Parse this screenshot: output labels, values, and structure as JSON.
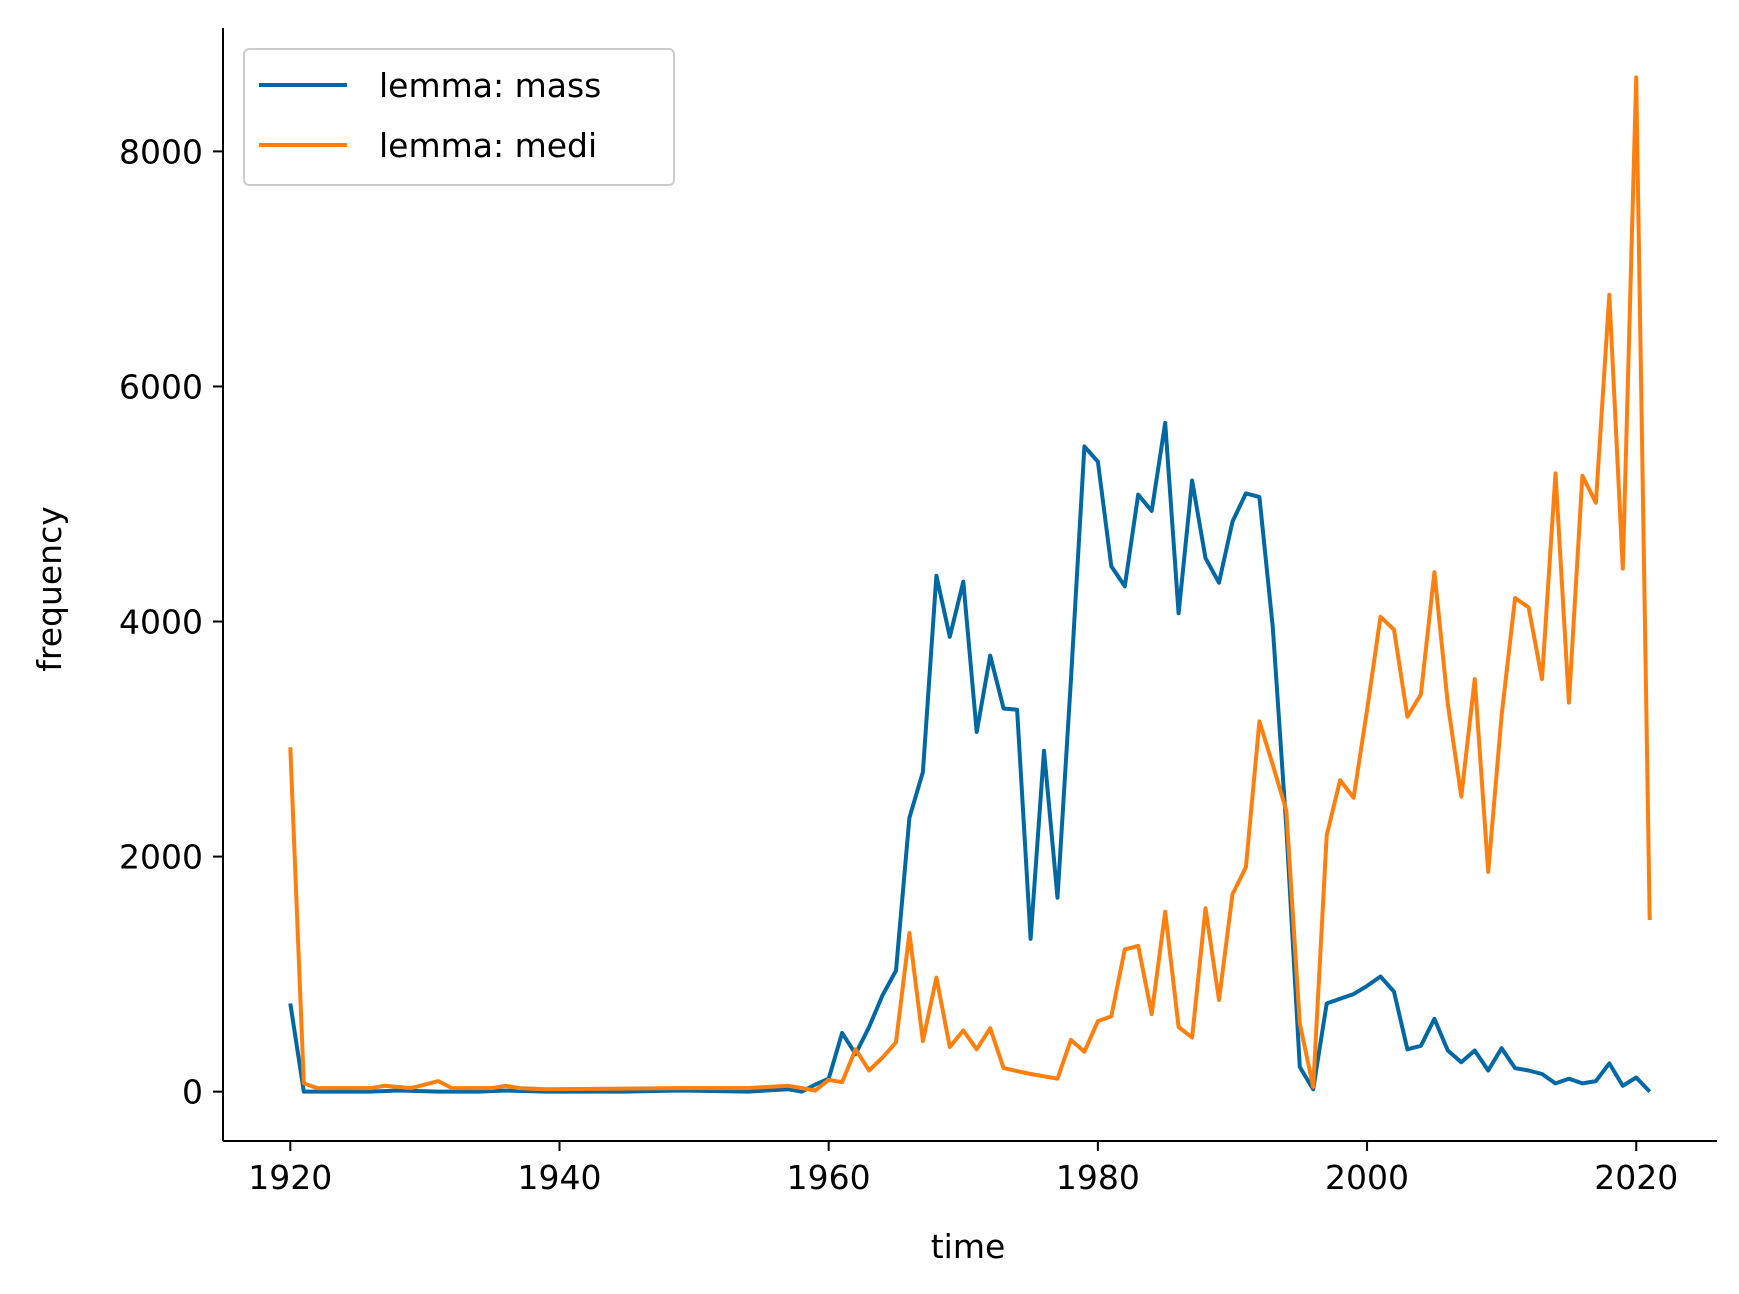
{
  "chart_data": {
    "type": "line",
    "xlabel": "time",
    "ylabel": "frequency",
    "xlim": [
      1915,
      2026
    ],
    "ylim": [
      -420,
      9050
    ],
    "x_ticks": [
      1920,
      1940,
      1960,
      1980,
      2000,
      2020
    ],
    "y_ticks": [
      0,
      2000,
      4000,
      6000,
      8000
    ],
    "legend": "top-left",
    "grid": false,
    "series": [
      {
        "name": "lemma: mass",
        "color": "#0068a2",
        "points": [
          [
            1920,
            750
          ],
          [
            1921,
            0
          ],
          [
            1923,
            0
          ],
          [
            1926,
            0
          ],
          [
            1928,
            10
          ],
          [
            1931,
            0
          ],
          [
            1934,
            0
          ],
          [
            1936,
            10
          ],
          [
            1939,
            0
          ],
          [
            1945,
            0
          ],
          [
            1949,
            10
          ],
          [
            1954,
            0
          ],
          [
            1957,
            20
          ],
          [
            1958,
            0
          ],
          [
            1959,
            60
          ],
          [
            1960,
            110
          ],
          [
            1961,
            500
          ],
          [
            1962,
            320
          ],
          [
            1963,
            550
          ],
          [
            1964,
            820
          ],
          [
            1965,
            1030
          ],
          [
            1966,
            2330
          ],
          [
            1967,
            2720
          ],
          [
            1968,
            4390
          ],
          [
            1969,
            3870
          ],
          [
            1970,
            4340
          ],
          [
            1971,
            3060
          ],
          [
            1972,
            3710
          ],
          [
            1973,
            3260
          ],
          [
            1974,
            3250
          ],
          [
            1975,
            1300
          ],
          [
            1976,
            2900
          ],
          [
            1977,
            1650
          ],
          [
            1978,
            3500
          ],
          [
            1979,
            5490
          ],
          [
            1980,
            5360
          ],
          [
            1981,
            4470
          ],
          [
            1982,
            4300
          ],
          [
            1983,
            5080
          ],
          [
            1984,
            4940
          ],
          [
            1985,
            5690
          ],
          [
            1986,
            4070
          ],
          [
            1987,
            5200
          ],
          [
            1988,
            4540
          ],
          [
            1989,
            4330
          ],
          [
            1990,
            4850
          ],
          [
            1991,
            5090
          ],
          [
            1992,
            5060
          ],
          [
            1993,
            3950
          ],
          [
            1994,
            2250
          ],
          [
            1995,
            210
          ],
          [
            1996,
            20
          ],
          [
            1997,
            750
          ],
          [
            1998,
            790
          ],
          [
            1999,
            830
          ],
          [
            2000,
            900
          ],
          [
            2001,
            980
          ],
          [
            2002,
            850
          ],
          [
            2003,
            360
          ],
          [
            2004,
            390
          ],
          [
            2005,
            620
          ],
          [
            2006,
            350
          ],
          [
            2007,
            250
          ],
          [
            2008,
            350
          ],
          [
            2009,
            180
          ],
          [
            2010,
            370
          ],
          [
            2011,
            200
          ],
          [
            2012,
            180
          ],
          [
            2013,
            150
          ],
          [
            2014,
            70
          ],
          [
            2015,
            110
          ],
          [
            2016,
            70
          ],
          [
            2017,
            90
          ],
          [
            2018,
            240
          ],
          [
            2019,
            50
          ],
          [
            2020,
            120
          ],
          [
            2021,
            0
          ]
        ]
      },
      {
        "name": "lemma: medi",
        "color": "#ff7f0e",
        "points": [
          [
            1920,
            2930
          ],
          [
            1921,
            70
          ],
          [
            1922,
            30
          ],
          [
            1924,
            30
          ],
          [
            1926,
            30
          ],
          [
            1927,
            50
          ],
          [
            1929,
            30
          ],
          [
            1931,
            90
          ],
          [
            1932,
            30
          ],
          [
            1935,
            30
          ],
          [
            1936,
            50
          ],
          [
            1937,
            30
          ],
          [
            1939,
            20
          ],
          [
            1949,
            30
          ],
          [
            1954,
            30
          ],
          [
            1957,
            50
          ],
          [
            1958,
            30
          ],
          [
            1959,
            10
          ],
          [
            1960,
            100
          ],
          [
            1961,
            80
          ],
          [
            1962,
            360
          ],
          [
            1963,
            180
          ],
          [
            1964,
            290
          ],
          [
            1965,
            420
          ],
          [
            1966,
            1350
          ],
          [
            1967,
            430
          ],
          [
            1968,
            970
          ],
          [
            1969,
            380
          ],
          [
            1970,
            520
          ],
          [
            1971,
            360
          ],
          [
            1972,
            540
          ],
          [
            1973,
            200
          ],
          [
            1975,
            150
          ],
          [
            1977,
            110
          ],
          [
            1978,
            440
          ],
          [
            1979,
            340
          ],
          [
            1980,
            600
          ],
          [
            1981,
            640
          ],
          [
            1982,
            1210
          ],
          [
            1983,
            1240
          ],
          [
            1984,
            660
          ],
          [
            1985,
            1530
          ],
          [
            1986,
            550
          ],
          [
            1987,
            460
          ],
          [
            1988,
            1560
          ],
          [
            1989,
            780
          ],
          [
            1990,
            1680
          ],
          [
            1991,
            1910
          ],
          [
            1992,
            3150
          ],
          [
            1993,
            2780
          ],
          [
            1994,
            2390
          ],
          [
            1995,
            580
          ],
          [
            1996,
            40
          ],
          [
            1997,
            2180
          ],
          [
            1998,
            2650
          ],
          [
            1999,
            2500
          ],
          [
            2000,
            3250
          ],
          [
            2001,
            4040
          ],
          [
            2002,
            3930
          ],
          [
            2003,
            3190
          ],
          [
            2004,
            3380
          ],
          [
            2005,
            4420
          ],
          [
            2006,
            3300
          ],
          [
            2007,
            2510
          ],
          [
            2008,
            3510
          ],
          [
            2009,
            1870
          ],
          [
            2010,
            3200
          ],
          [
            2011,
            4200
          ],
          [
            2012,
            4120
          ],
          [
            2013,
            3510
          ],
          [
            2014,
            5260
          ],
          [
            2015,
            3310
          ],
          [
            2016,
            5240
          ],
          [
            2017,
            5010
          ],
          [
            2018,
            6780
          ],
          [
            2019,
            4450
          ],
          [
            2020,
            8630
          ],
          [
            2021,
            1460
          ]
        ]
      }
    ]
  }
}
